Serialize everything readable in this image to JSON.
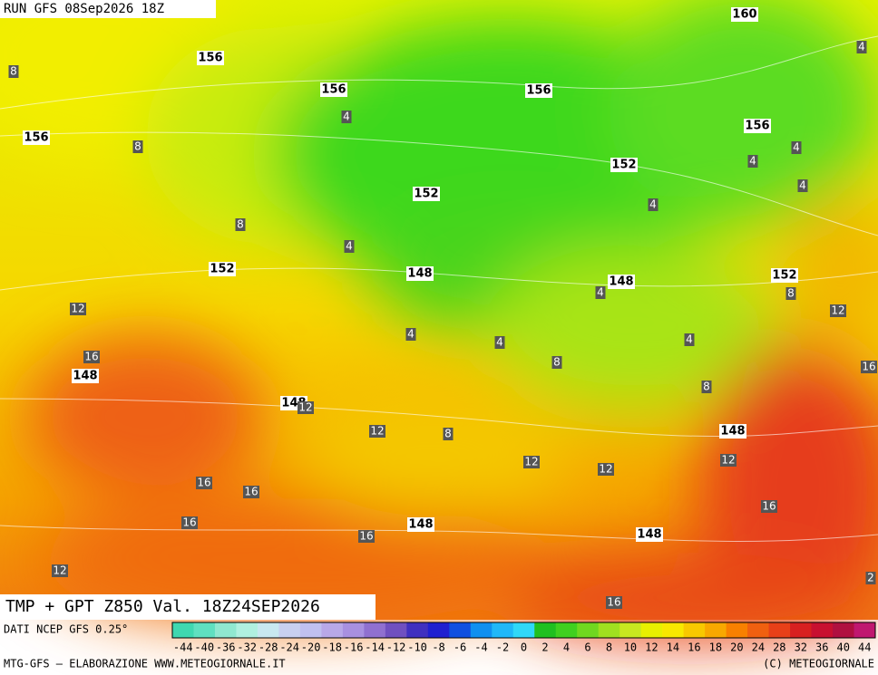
{
  "header": {
    "run": "RUN GFS 08Sep2026 18Z"
  },
  "map": {
    "geopotential_labels": [
      "156",
      "156",
      "156",
      "160",
      "156",
      "156",
      "152",
      "152",
      "152",
      "148",
      "148",
      "152",
      "148",
      "148",
      "148",
      "148",
      "148"
    ],
    "temperature_labels": [
      8,
      4,
      8,
      4,
      4,
      4,
      8,
      4,
      4,
      8,
      12,
      12,
      4,
      16,
      4,
      4,
      4,
      8,
      16,
      8,
      12,
      12,
      8,
      12,
      12,
      12,
      16,
      16,
      16,
      16,
      16,
      12,
      16,
      2,
      4
    ]
  },
  "footer": {
    "product": "TMP + GPT Z850 Val. 18Z24SEP2026",
    "source": "DATI NCEP GFS 0.25°",
    "colorbar_ticks": [
      -44,
      -40,
      -36,
      -32,
      -28,
      -24,
      -20,
      -18,
      -16,
      -14,
      -12,
      -10,
      -8,
      -6,
      -4,
      -2,
      0,
      2,
      4,
      6,
      8,
      10,
      12,
      14,
      16,
      18,
      20,
      24,
      28,
      32,
      36,
      40,
      44
    ],
    "credit": "MTG-GFS – ELABORAZIONE WWW.METEOGIORNALE.IT",
    "copyright": "(C) METEOGIORNALE"
  }
}
